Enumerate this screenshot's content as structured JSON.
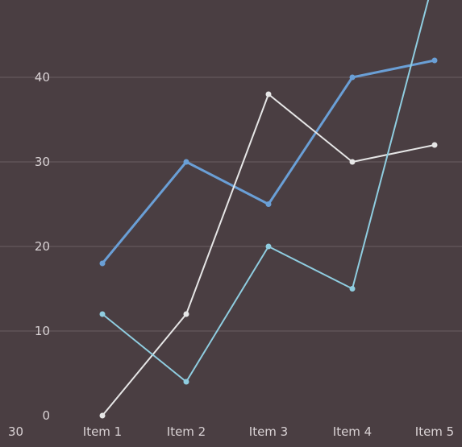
{
  "chart_data": {
    "type": "line",
    "title": "",
    "xlabel": "",
    "ylabel": "",
    "categories": [
      "Item 1",
      "Item 2",
      "Item 3",
      "Item 4",
      "Item 5"
    ],
    "corner_label": "30",
    "ylim": [
      0,
      48
    ],
    "yticks": [
      0,
      10,
      20,
      30,
      40
    ],
    "grid": true,
    "legend": "none",
    "series": [
      {
        "color": "#6a9fd6",
        "values": [
          18,
          30,
          25,
          40,
          42
        ]
      },
      {
        "color": "#e6e6e6",
        "values": [
          0,
          12,
          38,
          30,
          32
        ]
      },
      {
        "color": "#8fcde0",
        "values": [
          12,
          4,
          20,
          15,
          52
        ]
      }
    ]
  },
  "colors": {
    "background": "#4a3e42",
    "grid": "#6a5e62",
    "tick_text": "#d9d2d4"
  }
}
